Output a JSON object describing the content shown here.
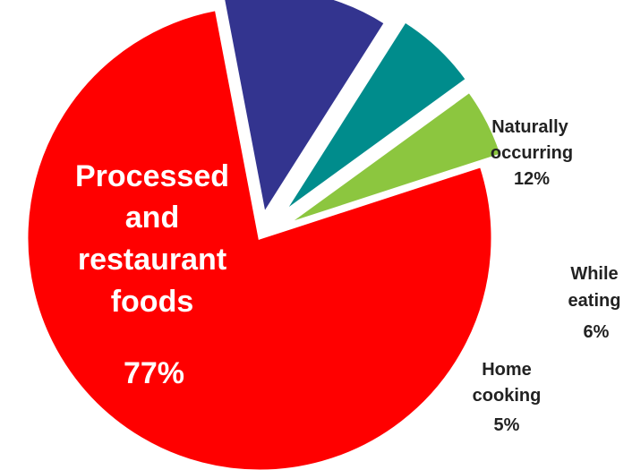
{
  "chart_data": {
    "type": "pie",
    "title": "",
    "slices": [
      {
        "lines": [
          "Processed",
          "and",
          "restaurant",
          "foods"
        ],
        "value_label": "77%",
        "value": 77,
        "color": "#ff0000",
        "label_color": "#ffffff"
      },
      {
        "lines": [
          "Naturally",
          "occurring"
        ],
        "value_label": "12%",
        "value": 12,
        "color": "#33348f",
        "label_color": "#222222"
      },
      {
        "lines": [
          "While",
          "eating"
        ],
        "value_label": "6%",
        "value": 6,
        "color": "#008c8c",
        "label_color": "#222222"
      },
      {
        "lines": [
          "Home",
          "cooking"
        ],
        "value_label": "5%",
        "value": 5,
        "color": "#8cc63f",
        "label_color": "#222222"
      }
    ]
  }
}
